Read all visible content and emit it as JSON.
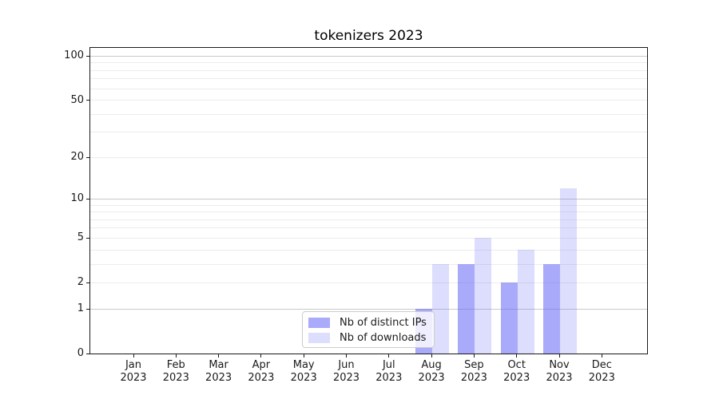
{
  "chart_data": {
    "type": "bar",
    "title": "tokenizers 2023",
    "categories": [
      "Jan",
      "Feb",
      "Mar",
      "Apr",
      "May",
      "Jun",
      "Jul",
      "Aug",
      "Sep",
      "Oct",
      "Nov",
      "Dec"
    ],
    "category_year": "2023",
    "series": [
      {
        "name": "Nb of distinct IPs",
        "color": "rgba(100,100,245,0.55)",
        "values": [
          0,
          0,
          0,
          0,
          0,
          0,
          0,
          1,
          3,
          2,
          3,
          0
        ]
      },
      {
        "name": "Nb of downloads",
        "color": "rgba(100,100,245,0.22)",
        "values": [
          0,
          0,
          0,
          0,
          0,
          0,
          0,
          3,
          5,
          4,
          12,
          0
        ]
      }
    ],
    "yscale": "log1p",
    "ylim": [
      0,
      114
    ],
    "y_ticks": [
      0,
      1,
      2,
      5,
      10,
      20,
      50,
      100
    ],
    "grid": {
      "major": [
        1,
        10,
        100
      ],
      "minor": [
        2,
        3,
        4,
        5,
        6,
        7,
        8,
        9,
        20,
        30,
        40,
        50,
        60,
        70,
        80,
        90
      ]
    },
    "legend_position": "lower-center-left",
    "colors": {
      "grid_major": "#c9c9c9",
      "grid_minor": "#ececec",
      "spine": "#1a1a1a",
      "text": "#1a1a1a",
      "legend_border": "#cccccc",
      "legend_bg": "rgba(255,255,255,0.8)"
    }
  }
}
